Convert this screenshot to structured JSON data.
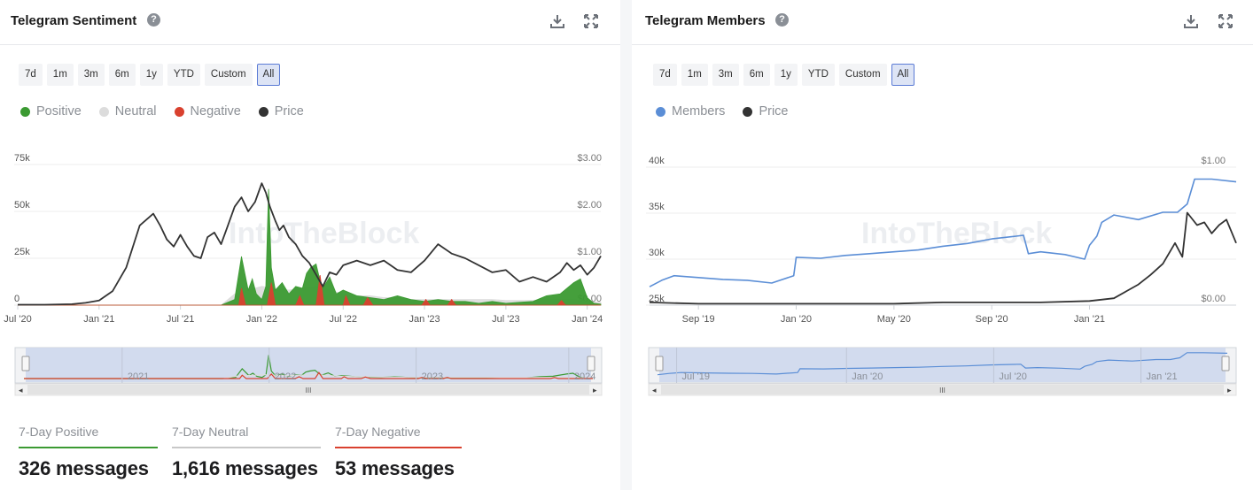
{
  "sentiment": {
    "title": "Telegram Sentiment",
    "help": "?",
    "range_buttons": [
      "7d",
      "1m",
      "3m",
      "6m",
      "1y",
      "YTD",
      "Custom",
      "All"
    ],
    "active_range": "All",
    "legend": [
      {
        "label": "Positive",
        "color": "#3b9a32"
      },
      {
        "label": "Neutral",
        "color": "#dcdcdc"
      },
      {
        "label": "Negative",
        "color": "#d9412f"
      },
      {
        "label": "Price",
        "color": "#333333"
      }
    ],
    "watermark": "IntoTheBlock",
    "navigator_labels": [
      "2021",
      "2022",
      "2023",
      "2024"
    ],
    "stats": [
      {
        "label": "7-Day Positive",
        "value": "326 messages",
        "color": "#3b9a32"
      },
      {
        "label": "7-Day Neutral",
        "value": "1,616 messages",
        "color": "#c8c8c8"
      },
      {
        "label": "7-Day Negative",
        "value": "53 messages",
        "color": "#d9412f"
      }
    ]
  },
  "members": {
    "title": "Telegram Members",
    "help": "?",
    "range_buttons": [
      "7d",
      "1m",
      "3m",
      "6m",
      "1y",
      "YTD",
      "Custom",
      "All"
    ],
    "active_range": "All",
    "legend": [
      {
        "label": "Members",
        "color": "#5b8ed6"
      },
      {
        "label": "Price",
        "color": "#333333"
      }
    ],
    "watermark": "IntoTheBlock",
    "navigator_labels": [
      "Jul '19",
      "Jan '20",
      "Jul '20",
      "Jan '21"
    ]
  },
  "chart_data": [
    {
      "type": "area",
      "title": "Telegram Sentiment",
      "x_unit": "months since Jul 2020",
      "x_range": [
        0,
        43
      ],
      "xticks": [
        {
          "x": 0,
          "label": "Jul '20"
        },
        {
          "x": 6,
          "label": "Jan '21"
        },
        {
          "x": 12,
          "label": "Jul '21"
        },
        {
          "x": 18,
          "label": "Jan '22"
        },
        {
          "x": 24,
          "label": "Jul '22"
        },
        {
          "x": 30,
          "label": "Jan '23"
        },
        {
          "x": 36,
          "label": "Jul '23"
        },
        {
          "x": 42,
          "label": "Jan '24"
        }
      ],
      "y_left": {
        "label": "Messages",
        "ylim": [
          0,
          75000
        ],
        "ticks": [
          {
            "v": 0,
            "label": "0"
          },
          {
            "v": 25000,
            "label": "25k"
          },
          {
            "v": 50000,
            "label": "50k"
          },
          {
            "v": 75000,
            "label": "75k"
          }
        ]
      },
      "y_right": {
        "label": "Price",
        "ylim": [
          0,
          3
        ],
        "ticks": [
          {
            "v": 0,
            "label": "$0.00"
          },
          {
            "v": 1,
            "label": "$1.00"
          },
          {
            "v": 2,
            "label": "$2.00"
          },
          {
            "v": 3,
            "label": "$3.00"
          }
        ]
      },
      "series": [
        {
          "name": "Positive",
          "axis": "left",
          "color": "#3b9a32",
          "x": [
            0,
            15,
            16,
            16.5,
            17,
            17.3,
            17.6,
            18,
            18.3,
            18.5,
            18.7,
            19,
            19.5,
            20,
            20.5,
            21,
            21.3,
            21.6,
            22,
            22.2,
            22.5,
            23,
            23.5,
            24,
            25,
            26,
            27,
            28,
            29,
            30,
            31,
            32,
            33,
            34,
            35,
            36,
            37,
            38,
            39,
            40,
            41,
            41.5,
            42,
            42.5,
            43
          ],
          "values": [
            0,
            0,
            3000,
            26000,
            8000,
            14000,
            6000,
            3000,
            10000,
            62000,
            20000,
            8000,
            12000,
            6000,
            10000,
            9000,
            17000,
            20000,
            22000,
            16000,
            9000,
            15000,
            6000,
            8000,
            5000,
            4000,
            3000,
            5000,
            3000,
            2000,
            3000,
            2000,
            2000,
            1000,
            2000,
            1000,
            1500,
            2000,
            5000,
            6000,
            12000,
            14000,
            4000,
            1000,
            500
          ]
        },
        {
          "name": "Neutral",
          "axis": "left",
          "color": "#dcdcdc",
          "x": [
            0,
            15,
            16,
            17,
            18,
            19,
            20,
            21,
            22,
            23,
            24,
            25,
            26,
            27,
            28,
            29,
            30,
            31,
            32,
            33,
            34,
            35,
            36,
            37,
            38,
            39,
            40,
            41,
            42,
            43
          ],
          "values": [
            0,
            0,
            6000,
            8000,
            10000,
            9000,
            8000,
            9000,
            10000,
            8000,
            6000,
            5000,
            5000,
            4000,
            4000,
            3000,
            3000,
            3000,
            3000,
            3000,
            3000,
            3000,
            2500,
            2500,
            2500,
            3000,
            3000,
            3000,
            2000,
            1500
          ]
        },
        {
          "name": "Negative",
          "axis": "left",
          "color": "#d9412f",
          "x": [
            0,
            16.3,
            16.5,
            16.8,
            17,
            18.4,
            18.7,
            19,
            20.5,
            20.8,
            21.1,
            22,
            22.3,
            22.6,
            24,
            24.2,
            24.5,
            25.5,
            25.8,
            26.2,
            29.8,
            30.1,
            30.4,
            31.7,
            32,
            32.3,
            39.8,
            40.1,
            40.4,
            43
          ],
          "values": [
            0,
            0,
            9000,
            0,
            0,
            0,
            12000,
            0,
            0,
            5000,
            0,
            0,
            16000,
            0,
            0,
            5000,
            0,
            0,
            4000,
            0,
            0,
            3000,
            0,
            0,
            3000,
            0,
            0,
            2500,
            0,
            0
          ]
        },
        {
          "name": "Price",
          "axis": "right",
          "color": "#333333",
          "type": "line",
          "x": [
            0,
            2,
            4,
            5,
            6,
            7,
            8,
            9,
            10,
            10.5,
            11,
            11.5,
            12,
            12.5,
            13,
            13.5,
            14,
            14.5,
            15,
            15.5,
            16,
            16.5,
            17,
            17.5,
            18,
            18.3,
            18.6,
            19,
            19.3,
            19.6,
            20,
            20.5,
            21,
            21.5,
            22,
            22.5,
            23,
            23.5,
            24,
            25,
            26,
            27,
            28,
            29,
            30,
            31,
            32,
            33,
            34,
            35,
            36,
            37,
            38,
            39,
            40,
            40.5,
            41,
            41.5,
            42,
            42.5,
            43
          ],
          "values": [
            0.01,
            0.01,
            0.02,
            0.05,
            0.1,
            0.3,
            0.8,
            1.7,
            1.95,
            1.7,
            1.4,
            1.25,
            1.5,
            1.25,
            1.05,
            1.0,
            1.45,
            1.55,
            1.3,
            1.7,
            2.1,
            2.3,
            2.0,
            2.2,
            2.6,
            2.4,
            2.1,
            1.8,
            1.6,
            1.7,
            1.45,
            1.3,
            1.05,
            0.9,
            0.65,
            0.4,
            0.7,
            0.65,
            0.85,
            0.95,
            0.85,
            0.95,
            0.75,
            0.7,
            0.95,
            1.3,
            1.1,
            1.0,
            0.85,
            0.7,
            0.75,
            0.5,
            0.6,
            0.5,
            0.7,
            0.9,
            0.75,
            0.85,
            0.65,
            0.8,
            1.05
          ]
        }
      ]
    },
    {
      "type": "line",
      "title": "Telegram Members",
      "x_unit": "months since Jul 2019",
      "x_range": [
        0,
        24
      ],
      "xticks": [
        {
          "x": 2,
          "label": "Sep '19"
        },
        {
          "x": 6,
          "label": "Jan '20"
        },
        {
          "x": 10,
          "label": "May '20"
        },
        {
          "x": 14,
          "label": "Sep '20"
        },
        {
          "x": 18,
          "label": "Jan '21"
        }
      ],
      "y_left": {
        "label": "Members",
        "ylim": [
          25000,
          40000
        ],
        "ticks": [
          {
            "v": 25000,
            "label": "25k"
          },
          {
            "v": 30000,
            "label": "30k"
          },
          {
            "v": 35000,
            "label": "35k"
          },
          {
            "v": 40000,
            "label": "40k"
          }
        ]
      },
      "y_right": {
        "label": "Price",
        "ylim": [
          0,
          1
        ],
        "ticks": [
          {
            "v": 0,
            "label": "$0.00"
          },
          {
            "v": 1,
            "label": "$1.00"
          }
        ]
      },
      "series": [
        {
          "name": "Members",
          "axis": "left",
          "color": "#5b8ed6",
          "x": [
            0,
            0.5,
            1,
            2,
            3,
            4,
            5,
            5.9,
            6,
            7,
            8,
            9,
            10,
            11,
            12,
            13,
            14,
            15,
            15.3,
            15.5,
            16,
            17,
            17.8,
            18,
            18.3,
            18.5,
            19,
            20,
            21,
            21.6,
            22,
            22.3,
            23,
            24
          ],
          "values": [
            27000,
            27700,
            28200,
            28000,
            27800,
            27700,
            27400,
            28200,
            30200,
            30100,
            30400,
            30600,
            30800,
            31000,
            31400,
            31700,
            32200,
            32500,
            32600,
            30600,
            30800,
            30500,
            30000,
            31500,
            32500,
            34000,
            34800,
            34300,
            35100,
            35100,
            36000,
            38700,
            38700,
            38400
          ]
        },
        {
          "name": "Price",
          "axis": "right",
          "color": "#333333",
          "type": "line",
          "x": [
            0,
            2,
            4,
            6,
            8,
            10,
            12,
            14,
            16,
            18,
            19,
            19.5,
            20,
            20.5,
            21,
            21.5,
            21.8,
            22,
            22.4,
            22.7,
            23,
            23.3,
            23.6,
            24
          ],
          "values": [
            0.02,
            0.01,
            0.01,
            0.01,
            0.01,
            0.01,
            0.02,
            0.02,
            0.02,
            0.03,
            0.05,
            0.1,
            0.15,
            0.22,
            0.3,
            0.45,
            0.35,
            0.67,
            0.58,
            0.6,
            0.52,
            0.58,
            0.62,
            0.45
          ]
        }
      ]
    }
  ]
}
